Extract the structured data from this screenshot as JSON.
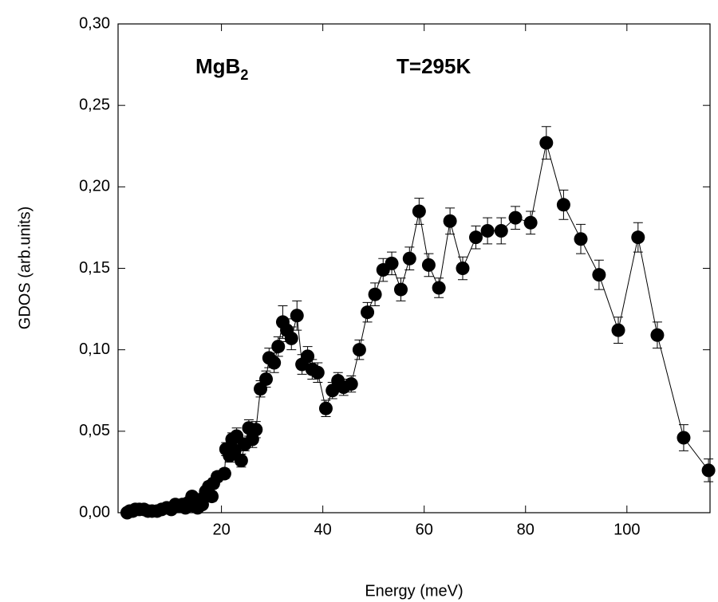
{
  "chart_data": {
    "type": "scatter",
    "x_label": "Energy (meV)",
    "y_label": "GDOS (arb.units)",
    "annotations": [
      {
        "text": "MgB",
        "subscript": "2"
      },
      {
        "text": "T=295K"
      }
    ],
    "xlim": [
      -0.4,
      116.4
    ],
    "ylim": [
      0,
      0.3
    ],
    "xticks": [
      20,
      40,
      60,
      80,
      100
    ],
    "yticks": [
      {
        "value": 0,
        "label": "0,00"
      },
      {
        "value": 0.05,
        "label": "0,05"
      },
      {
        "value": 0.1,
        "label": "0,10"
      },
      {
        "value": 0.15,
        "label": "0,15"
      },
      {
        "value": 0.2,
        "label": "0,20"
      },
      {
        "value": 0.25,
        "label": "0,25"
      },
      {
        "value": 0.3,
        "label": "0,30"
      }
    ],
    "color": "#000000",
    "line": true,
    "series": [
      {
        "x": [
          1.4,
          1.9,
          2.5,
          3.0,
          3.8,
          4.7,
          5.5,
          6.3,
          7.3,
          8.2,
          9.2,
          10.1,
          10.9,
          11.5,
          12.3,
          12.9,
          13.4,
          14.2,
          14.7,
          15.3,
          15.8,
          16.2,
          16.9,
          17.5,
          18.1,
          18.4,
          19.2,
          20.6,
          20.9,
          21.6,
          22.1,
          22.6,
          23.0,
          23.9,
          24.6,
          25.4,
          26.1,
          26.8,
          27.7,
          28.8,
          29.4,
          30.4,
          31.2,
          32.1,
          32.9,
          33.8,
          34.9,
          35.9,
          37.0,
          37.9,
          39.0,
          40.6,
          41.9,
          43.0,
          44.1,
          45.6,
          47.2,
          48.8,
          50.3,
          51.9,
          53.6,
          55.4,
          57.1,
          59.0,
          60.9,
          62.9,
          65.1,
          67.6,
          70.2,
          72.5,
          75.2,
          78.0,
          81.0,
          84.1,
          87.5,
          90.9,
          94.5,
          98.3,
          102.2,
          106.0,
          111.2,
          116.1
        ],
        "values": [
          0.0,
          0.001,
          0.001,
          0.002,
          0.002,
          0.002,
          0.001,
          0.001,
          0.001,
          0.002,
          0.003,
          0.002,
          0.005,
          0.004,
          0.005,
          0.003,
          0.006,
          0.01,
          0.004,
          0.003,
          0.008,
          0.005,
          0.013,
          0.016,
          0.01,
          0.018,
          0.022,
          0.024,
          0.039,
          0.035,
          0.045,
          0.038,
          0.047,
          0.032,
          0.042,
          0.052,
          0.045,
          0.051,
          0.076,
          0.082,
          0.095,
          0.092,
          0.102,
          0.117,
          0.112,
          0.107,
          0.121,
          0.091,
          0.096,
          0.088,
          0.086,
          0.064,
          0.075,
          0.081,
          0.077,
          0.079,
          0.1,
          0.123,
          0.134,
          0.149,
          0.153,
          0.137,
          0.156,
          0.185,
          0.152,
          0.138,
          0.179,
          0.15,
          0.169,
          0.173,
          0.173,
          0.181,
          0.178,
          0.227,
          0.189,
          0.168,
          0.146,
          0.112,
          0.169,
          0.109,
          0.046,
          0.026
        ],
        "errors": [
          0.001,
          0.001,
          0.001,
          0.001,
          0.001,
          0.001,
          0.001,
          0.001,
          0.001,
          0.001,
          0.001,
          0.001,
          0.002,
          0.002,
          0.002,
          0.002,
          0.002,
          0.002,
          0.002,
          0.002,
          0.002,
          0.002,
          0.003,
          0.003,
          0.003,
          0.003,
          0.003,
          0.003,
          0.004,
          0.004,
          0.004,
          0.004,
          0.005,
          0.004,
          0.004,
          0.005,
          0.005,
          0.005,
          0.005,
          0.005,
          0.006,
          0.006,
          0.006,
          0.01,
          0.007,
          0.007,
          0.009,
          0.006,
          0.006,
          0.006,
          0.006,
          0.005,
          0.005,
          0.005,
          0.005,
          0.005,
          0.006,
          0.006,
          0.007,
          0.007,
          0.007,
          0.007,
          0.007,
          0.008,
          0.007,
          0.006,
          0.008,
          0.007,
          0.007,
          0.008,
          0.008,
          0.007,
          0.007,
          0.01,
          0.009,
          0.009,
          0.009,
          0.008,
          0.009,
          0.008,
          0.008,
          0.007
        ]
      }
    ]
  }
}
